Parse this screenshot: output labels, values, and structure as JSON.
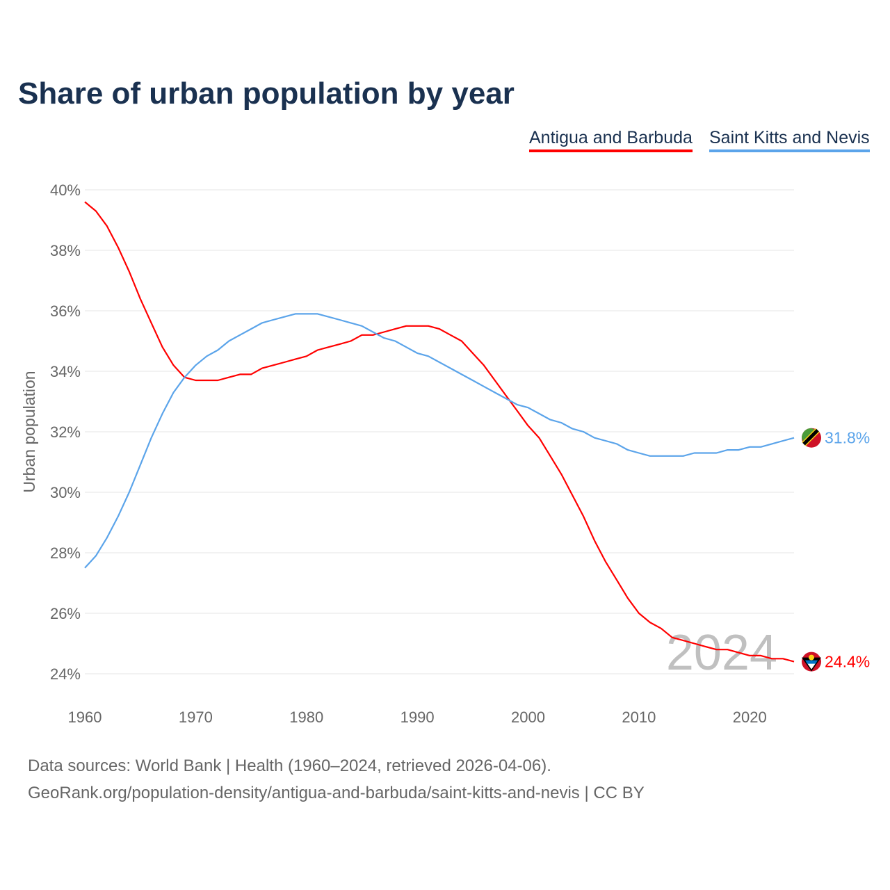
{
  "chart_data": {
    "type": "line",
    "title": "Share of urban population by year",
    "ylabel": "Urban population",
    "xlabel": "",
    "xlim": [
      1960,
      2024
    ],
    "ylim": [
      24,
      40
    ],
    "x_ticks": [
      "1960",
      "1970",
      "1980",
      "1990",
      "2000",
      "2010",
      "2020"
    ],
    "y_ticks": [
      "24%",
      "26%",
      "28%",
      "30%",
      "32%",
      "34%",
      "36%",
      "38%",
      "40%"
    ],
    "grid": true,
    "legend_position": "top-right",
    "year_watermark": "2024",
    "x": [
      1960,
      1961,
      1962,
      1963,
      1964,
      1965,
      1966,
      1967,
      1968,
      1969,
      1970,
      1971,
      1972,
      1973,
      1974,
      1975,
      1976,
      1977,
      1978,
      1979,
      1980,
      1981,
      1982,
      1983,
      1984,
      1985,
      1986,
      1987,
      1988,
      1989,
      1990,
      1991,
      1992,
      1993,
      1994,
      1995,
      1996,
      1997,
      1998,
      1999,
      2000,
      2001,
      2002,
      2003,
      2004,
      2005,
      2006,
      2007,
      2008,
      2009,
      2010,
      2011,
      2012,
      2013,
      2014,
      2015,
      2016,
      2017,
      2018,
      2019,
      2020,
      2021,
      2022,
      2023,
      2024
    ],
    "series": [
      {
        "name": "Antigua and Barbuda",
        "color": "#ff0000",
        "end_label": "24.4%",
        "values": [
          39.6,
          39.3,
          38.8,
          38.1,
          37.3,
          36.4,
          35.6,
          34.8,
          34.2,
          33.8,
          33.7,
          33.7,
          33.7,
          33.8,
          33.9,
          33.9,
          34.1,
          34.2,
          34.3,
          34.4,
          34.5,
          34.7,
          34.8,
          34.9,
          35.0,
          35.2,
          35.2,
          35.3,
          35.4,
          35.5,
          35.5,
          35.5,
          35.4,
          35.2,
          35.0,
          34.6,
          34.2,
          33.7,
          33.2,
          32.7,
          32.2,
          31.8,
          31.2,
          30.6,
          29.9,
          29.2,
          28.4,
          27.7,
          27.1,
          26.5,
          26.0,
          25.7,
          25.5,
          25.2,
          25.1,
          25.0,
          24.9,
          24.8,
          24.8,
          24.7,
          24.6,
          24.6,
          24.5,
          24.5,
          24.4
        ]
      },
      {
        "name": "Saint Kitts and Nevis",
        "color": "#5ba4ea",
        "end_label": "31.8%",
        "values": [
          27.5,
          27.9,
          28.5,
          29.2,
          30.0,
          30.9,
          31.8,
          32.6,
          33.3,
          33.8,
          34.2,
          34.5,
          34.7,
          35.0,
          35.2,
          35.4,
          35.6,
          35.7,
          35.8,
          35.9,
          35.9,
          35.9,
          35.8,
          35.7,
          35.6,
          35.5,
          35.3,
          35.1,
          35.0,
          34.8,
          34.6,
          34.5,
          34.3,
          34.1,
          33.9,
          33.7,
          33.5,
          33.3,
          33.1,
          32.9,
          32.8,
          32.6,
          32.4,
          32.3,
          32.1,
          32.0,
          31.8,
          31.7,
          31.6,
          31.4,
          31.3,
          31.2,
          31.2,
          31.2,
          31.2,
          31.3,
          31.3,
          31.3,
          31.4,
          31.4,
          31.5,
          31.5,
          31.6,
          31.7,
          31.8
        ]
      }
    ]
  },
  "footer": {
    "line1": "Data sources: World Bank | Health (1960–2024, retrieved 2026-04-06).",
    "line2": "GeoRank.org/population-density/antigua-and-barbuda/saint-kitts-and-nevis | CC BY"
  }
}
